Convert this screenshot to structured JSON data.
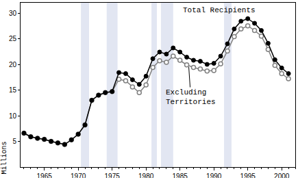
{
  "chart_data": {
    "type": "line",
    "ylabel": "Millions",
    "x": [
      1962,
      1963,
      1964,
      1965,
      1966,
      1967,
      1968,
      1969,
      1970,
      1971,
      1972,
      1973,
      1974,
      1975,
      1976,
      1977,
      1978,
      1979,
      1980,
      1981,
      1982,
      1983,
      1984,
      1985,
      1986,
      1987,
      1988,
      1989,
      1990,
      1991,
      1992,
      1993,
      1994,
      1995,
      1996,
      1997,
      1998,
      1999,
      2000,
      2001
    ],
    "series": [
      {
        "name": "Total Recipients",
        "color": "#000000",
        "marker": "circle",
        "values": [
          6.6,
          5.9,
          5.6,
          5.4,
          5.0,
          4.7,
          4.4,
          5.3,
          6.4,
          8.2,
          13.0,
          14.0,
          14.5,
          14.7,
          18.4,
          18.2,
          17.0,
          16.1,
          17.7,
          21.1,
          22.4,
          22.0,
          23.2,
          22.4,
          21.4,
          20.8,
          20.6,
          20.0,
          20.2,
          21.6,
          24.0,
          26.9,
          28.4,
          28.9,
          28.0,
          26.6,
          24.1,
          20.9,
          19.3,
          18.2
        ]
      },
      {
        "name": "Excluding Territories",
        "color": "#808080",
        "marker": "open_circle",
        "values": [
          6.6,
          5.9,
          5.6,
          5.4,
          5.0,
          4.7,
          4.4,
          5.3,
          6.4,
          8.2,
          13.0,
          14.0,
          14.5,
          14.7,
          17.1,
          16.8,
          15.6,
          14.5,
          16.0,
          19.4,
          20.7,
          20.4,
          21.6,
          20.8,
          19.9,
          19.4,
          19.1,
          18.7,
          18.8,
          20.1,
          22.6,
          25.4,
          26.9,
          27.5,
          26.6,
          25.5,
          22.9,
          19.8,
          18.2,
          17.2
        ]
      }
    ],
    "shaded_periods": [
      [
        1970.4,
        1971.6
      ],
      [
        1974.2,
        1975.8
      ],
      [
        1980.8,
        1981.6
      ],
      [
        1982.2,
        1984.0
      ],
      [
        1991.5,
        1992.6
      ]
    ],
    "annotations": [
      {
        "text": "Total Recipients",
        "x": 1990.8,
        "y": 30.6
      },
      {
        "text": "Excluding Territories",
        "x": 1986.6,
        "y": 13.6,
        "arrow_to": [
          1986.3,
          19.5
        ]
      }
    ],
    "xlim": [
      1961.5,
      2002
    ],
    "xticks": [
      1965,
      1970,
      1975,
      1980,
      1985,
      1990,
      1995,
      2000
    ],
    "ylim": [
      0,
      32
    ],
    "yticks": [
      5,
      10,
      15,
      20,
      25,
      30
    ],
    "grid": false,
    "legend": "none"
  }
}
